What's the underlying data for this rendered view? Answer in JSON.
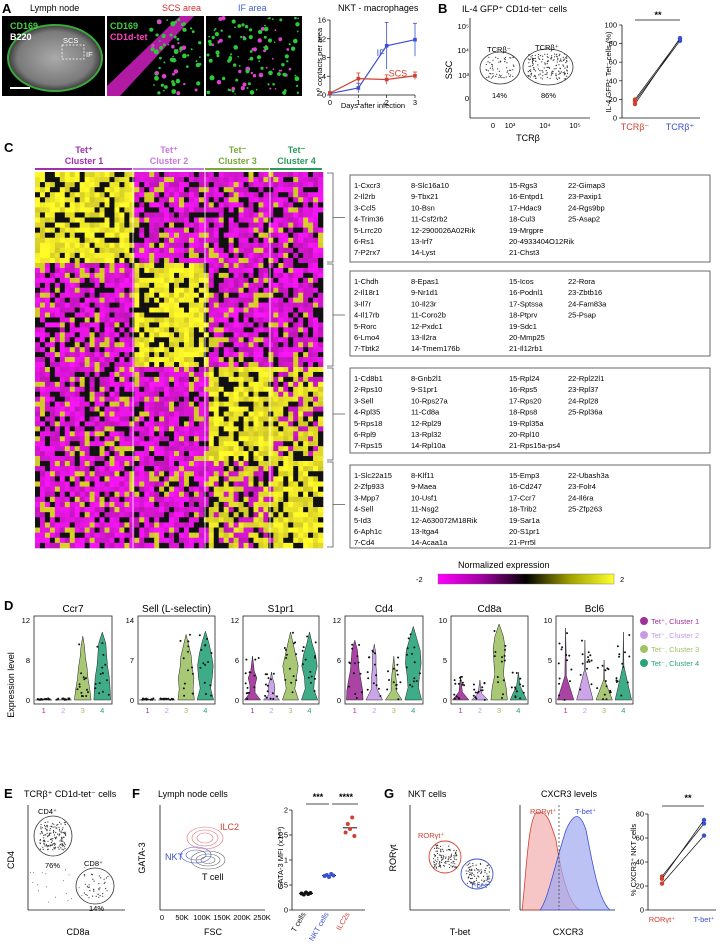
{
  "panels": {
    "A": {
      "letter": "A",
      "lymph_node_title": "Lymph node",
      "cd169": "CD169",
      "b220": "B220",
      "scs_label": "SCS",
      "if_label": "IF",
      "scs_area_title": "SCS area",
      "if_area_title": "IF area",
      "cd169_b": "CD169",
      "cd1d_tet": "CD1d-tet",
      "chart_title": "NKT - macrophages"
    },
    "B": {
      "letter": "B",
      "title": "IL-4 GFP⁺ CD1d-tet⁻ cells",
      "ssc": "SSC",
      "tcrb": "TCRβ",
      "gate_neg": "TCRβ⁻",
      "gate_pos": "TCRβ⁺",
      "pct_neg": "14%",
      "pct_pos": "86%",
      "ticks_y": [
        "10⁵",
        "10⁴",
        "10³",
        "0"
      ],
      "ticks_x": [
        "0",
        "10³",
        "10⁴",
        "10⁵"
      ],
      "sig": "**"
    },
    "C": {
      "letter": "C",
      "clusters": [
        {
          "name": "Tet⁺",
          "sub": "Cluster 1",
          "color": "#a030b0"
        },
        {
          "name": "Tet⁺",
          "sub": "Cluster 2",
          "color": "#c77ae0"
        },
        {
          "name": "Tet⁻",
          "sub": "Cluster 3",
          "color": "#7aa83a"
        },
        {
          "name": "Tet⁻",
          "sub": "Cluster 4",
          "color": "#2a9a5a"
        }
      ],
      "gene_lists": [
        {
          "col1": [
            "1-Cxcr3",
            "2-Il2rb",
            "3-Ccl5",
            "4-Trim36",
            "5-Lrrc20",
            "6-Rs1",
            "7-P2rx7"
          ],
          "col2": [
            "8-Slc16a10",
            "9-Tbx21",
            "10-Bsn",
            "11-Csf2rb2",
            "12-2900026A02Rik",
            "13-Irf7",
            "14-Lyst"
          ],
          "col3": [
            "15-Rgs3",
            "16-Entpd1",
            "17-Hdac9",
            "18-Cul3",
            "19-Mrgpre",
            "20-4933404O12Rik",
            "21-Chst3"
          ],
          "col4": [
            "22-Gimap3",
            "23-Paxip1",
            "24-Rgs9bp",
            "25-Asap2"
          ]
        },
        {
          "col1": [
            "1-Chdh",
            "2-Il18r1",
            "3-Il7r",
            "4-Il17rb",
            "5-Rorc",
            "6-Lmo4",
            "7-Tbtk2"
          ],
          "col2": [
            "8-Epas1",
            "9-Nr1d1",
            "10-Il23r",
            "11-Coro2b",
            "12-Pxdc1",
            "13-Il2ra",
            "14-Tmem176b"
          ],
          "col3": [
            "15-Icos",
            "16-Podnl1",
            "17-Sptssa",
            "18-Ptprv",
            "19-Sdc1",
            "20-Mmp25",
            "21-Il12rb1"
          ],
          "col4": [
            "22-Rora",
            "23-Zbtb16",
            "24-Fam83a",
            "25-Psap"
          ]
        },
        {
          "col1": [
            "1-Cd8b1",
            "2-Rps10",
            "3-Sell",
            "4-Rpl35",
            "5-Rps18",
            "6-Rpl9",
            "7-Rps15"
          ],
          "col2": [
            "8-Gnb2l1",
            "9-S1pr1",
            "10-Rps27a",
            "11-Cd8a",
            "12-Rpl29",
            "13-Rpl32",
            "14-Rpl10a"
          ],
          "col3": [
            "15-Rpl24",
            "16-Rps5",
            "17-Rps20",
            "18-Rps8",
            "19-Rpl35a",
            "20-Rpl10",
            "21-Rps15a-ps4"
          ],
          "col4": [
            "22-Rpl22l1",
            "23-Rpl37",
            "24-Rpl28",
            "25-Rpl36a"
          ]
        },
        {
          "col1": [
            "1-Slc22a15",
            "2-Zfp933",
            "3-Mpp7",
            "4-Sell",
            "5-Id3",
            "6-Aph1c",
            "7-Cd4"
          ],
          "col2": [
            "8-Klf11",
            "9-Maea",
            "10-Usf1",
            "11-Nsg2",
            "12-A630072M18Rik",
            "13-Itga4",
            "14-Acaa1a"
          ],
          "col3": [
            "15-Emp3",
            "16-Cd247",
            "17-Ccr7",
            "18-Trib2",
            "19-Sar1a",
            "20-S1pr1",
            "21-Prr5l"
          ],
          "col4": [
            "22-Ubash3a",
            "23-Folr4",
            "24-Il6ra",
            "25-Zfp263"
          ]
        }
      ],
      "colorbar_title": "Normalized expression",
      "colorbar_min": "-2",
      "colorbar_max": "2"
    },
    "D": {
      "letter": "D",
      "genes": [
        "Ccr7",
        "Sell (L-selectin)",
        "S1pr1",
        "Cd4",
        "Cd8a",
        "Bcl6"
      ],
      "y_label": "Expression level",
      "ymax_labels": [
        "12",
        "14",
        "12",
        "12",
        "10",
        "10"
      ],
      "ymid_labels": [
        "8",
        "7",
        "6",
        "6",
        "5",
        "5"
      ],
      "ymin_labels": [
        "0",
        "0",
        "0",
        "0",
        "0",
        "0"
      ],
      "x_labels": [
        "1",
        "2",
        "3",
        "4"
      ],
      "legend": [
        {
          "label": "Tet⁺, Cluster 1",
          "color": "#a0309a"
        },
        {
          "label": "Tet⁺, Cluster 2",
          "color": "#c79ae6"
        },
        {
          "label": "Tet⁻, Cluster 3",
          "color": "#a0c266"
        },
        {
          "label": "Tet⁻, Cluster 4",
          "color": "#29a37a"
        }
      ]
    },
    "E": {
      "letter": "E",
      "title": "TCRβ⁺ CD1d-tet⁻ cells",
      "gate1": "CD4⁺",
      "gate2": "CD8⁺",
      "pct1": "76%",
      "pct2": "14%",
      "ylab": "CD4",
      "xlab": "CD8a"
    },
    "F": {
      "letter": "F",
      "title": "Lymph node cells",
      "ilc2": "ILC2",
      "nkt": "NKT",
      "tcell": "T cell",
      "ylab": "GATA-3",
      "xlab": "FSC",
      "xticks": [
        "0",
        "50K",
        "100K",
        "150K",
        "200K",
        "250K"
      ],
      "mfi_label": "GATA-3 MFI (x10³)",
      "sig1": "***",
      "sig2": "****"
    },
    "G": {
      "letter": "G",
      "nkt_title": "NKT cells",
      "cxcr3_title": "CXCR3 levels",
      "ror": "RORγt⁺",
      "tbet": "T-bet⁺",
      "ylab": "RORγt",
      "xlab": "T-bet",
      "hist_x": "CXCR3",
      "pct_label": "% CXCR3⁺ NKT cells",
      "sig": "**"
    }
  },
  "chart_data": [
    {
      "type": "line",
      "title": "NKT - macrophages",
      "xlabel": "Days after infection",
      "ylabel": "Nº contacts per area",
      "x": [
        0,
        1,
        2,
        3
      ],
      "xlim": [
        0,
        3
      ],
      "ylim": [
        0,
        16
      ],
      "yticks": [
        0,
        4,
        8,
        12,
        16
      ],
      "series": [
        {
          "name": "IF",
          "color": "#3a50d0",
          "values": [
            0.3,
            1.5,
            10.5,
            11.8
          ],
          "err": [
            0.2,
            1.0,
            5.0,
            3.5
          ]
        },
        {
          "name": "SCS",
          "color": "#d04030",
          "values": [
            0.4,
            3.5,
            3.3,
            4.1
          ],
          "err": [
            0.3,
            1.2,
            1.0,
            0.8
          ]
        }
      ]
    },
    {
      "type": "scatter",
      "title": "IL-4 GFP⁺ Tet⁻ cells (%)",
      "ylabel": "IL-4 GFP⁺ Tet⁻ cells (%)",
      "categories": [
        "TCRβ⁻",
        "TCRβ⁺"
      ],
      "ylim": [
        0,
        100
      ],
      "yticks": [
        0,
        20,
        40,
        60,
        80,
        100
      ],
      "pairs": [
        [
          15,
          86
        ],
        [
          18,
          83
        ],
        [
          20,
          85
        ]
      ]
    },
    {
      "type": "scatter",
      "title": "GATA-3 MFI",
      "ylabel": "GATA-3 MFI (x10³)",
      "categories": [
        "T cells",
        "NKT cells",
        "ILC2s"
      ],
      "category_colors": [
        "#111111",
        "#3a50d0",
        "#d04030"
      ],
      "ylim": [
        0,
        2
      ],
      "yticks": [
        0,
        0.5,
        1.0,
        1.5,
        2.0
      ],
      "values": [
        [
          0.33,
          0.31,
          0.35,
          0.32,
          0.34
        ],
        [
          0.68,
          0.7,
          0.66,
          0.72,
          0.69
        ],
        [
          1.55,
          1.72,
          1.62,
          1.85,
          1.48
        ]
      ]
    },
    {
      "type": "scatter",
      "title": "% CXCR3⁺ NKT cells",
      "ylabel": "% CXCR3⁺ NKT cells",
      "categories": [
        "RORγt⁺",
        "T-bet⁺"
      ],
      "ylim": [
        0,
        80
      ],
      "yticks": [
        0,
        20,
        40,
        60,
        80
      ],
      "pairs": [
        [
          22,
          62
        ],
        [
          28,
          72
        ],
        [
          26,
          75
        ]
      ]
    }
  ]
}
